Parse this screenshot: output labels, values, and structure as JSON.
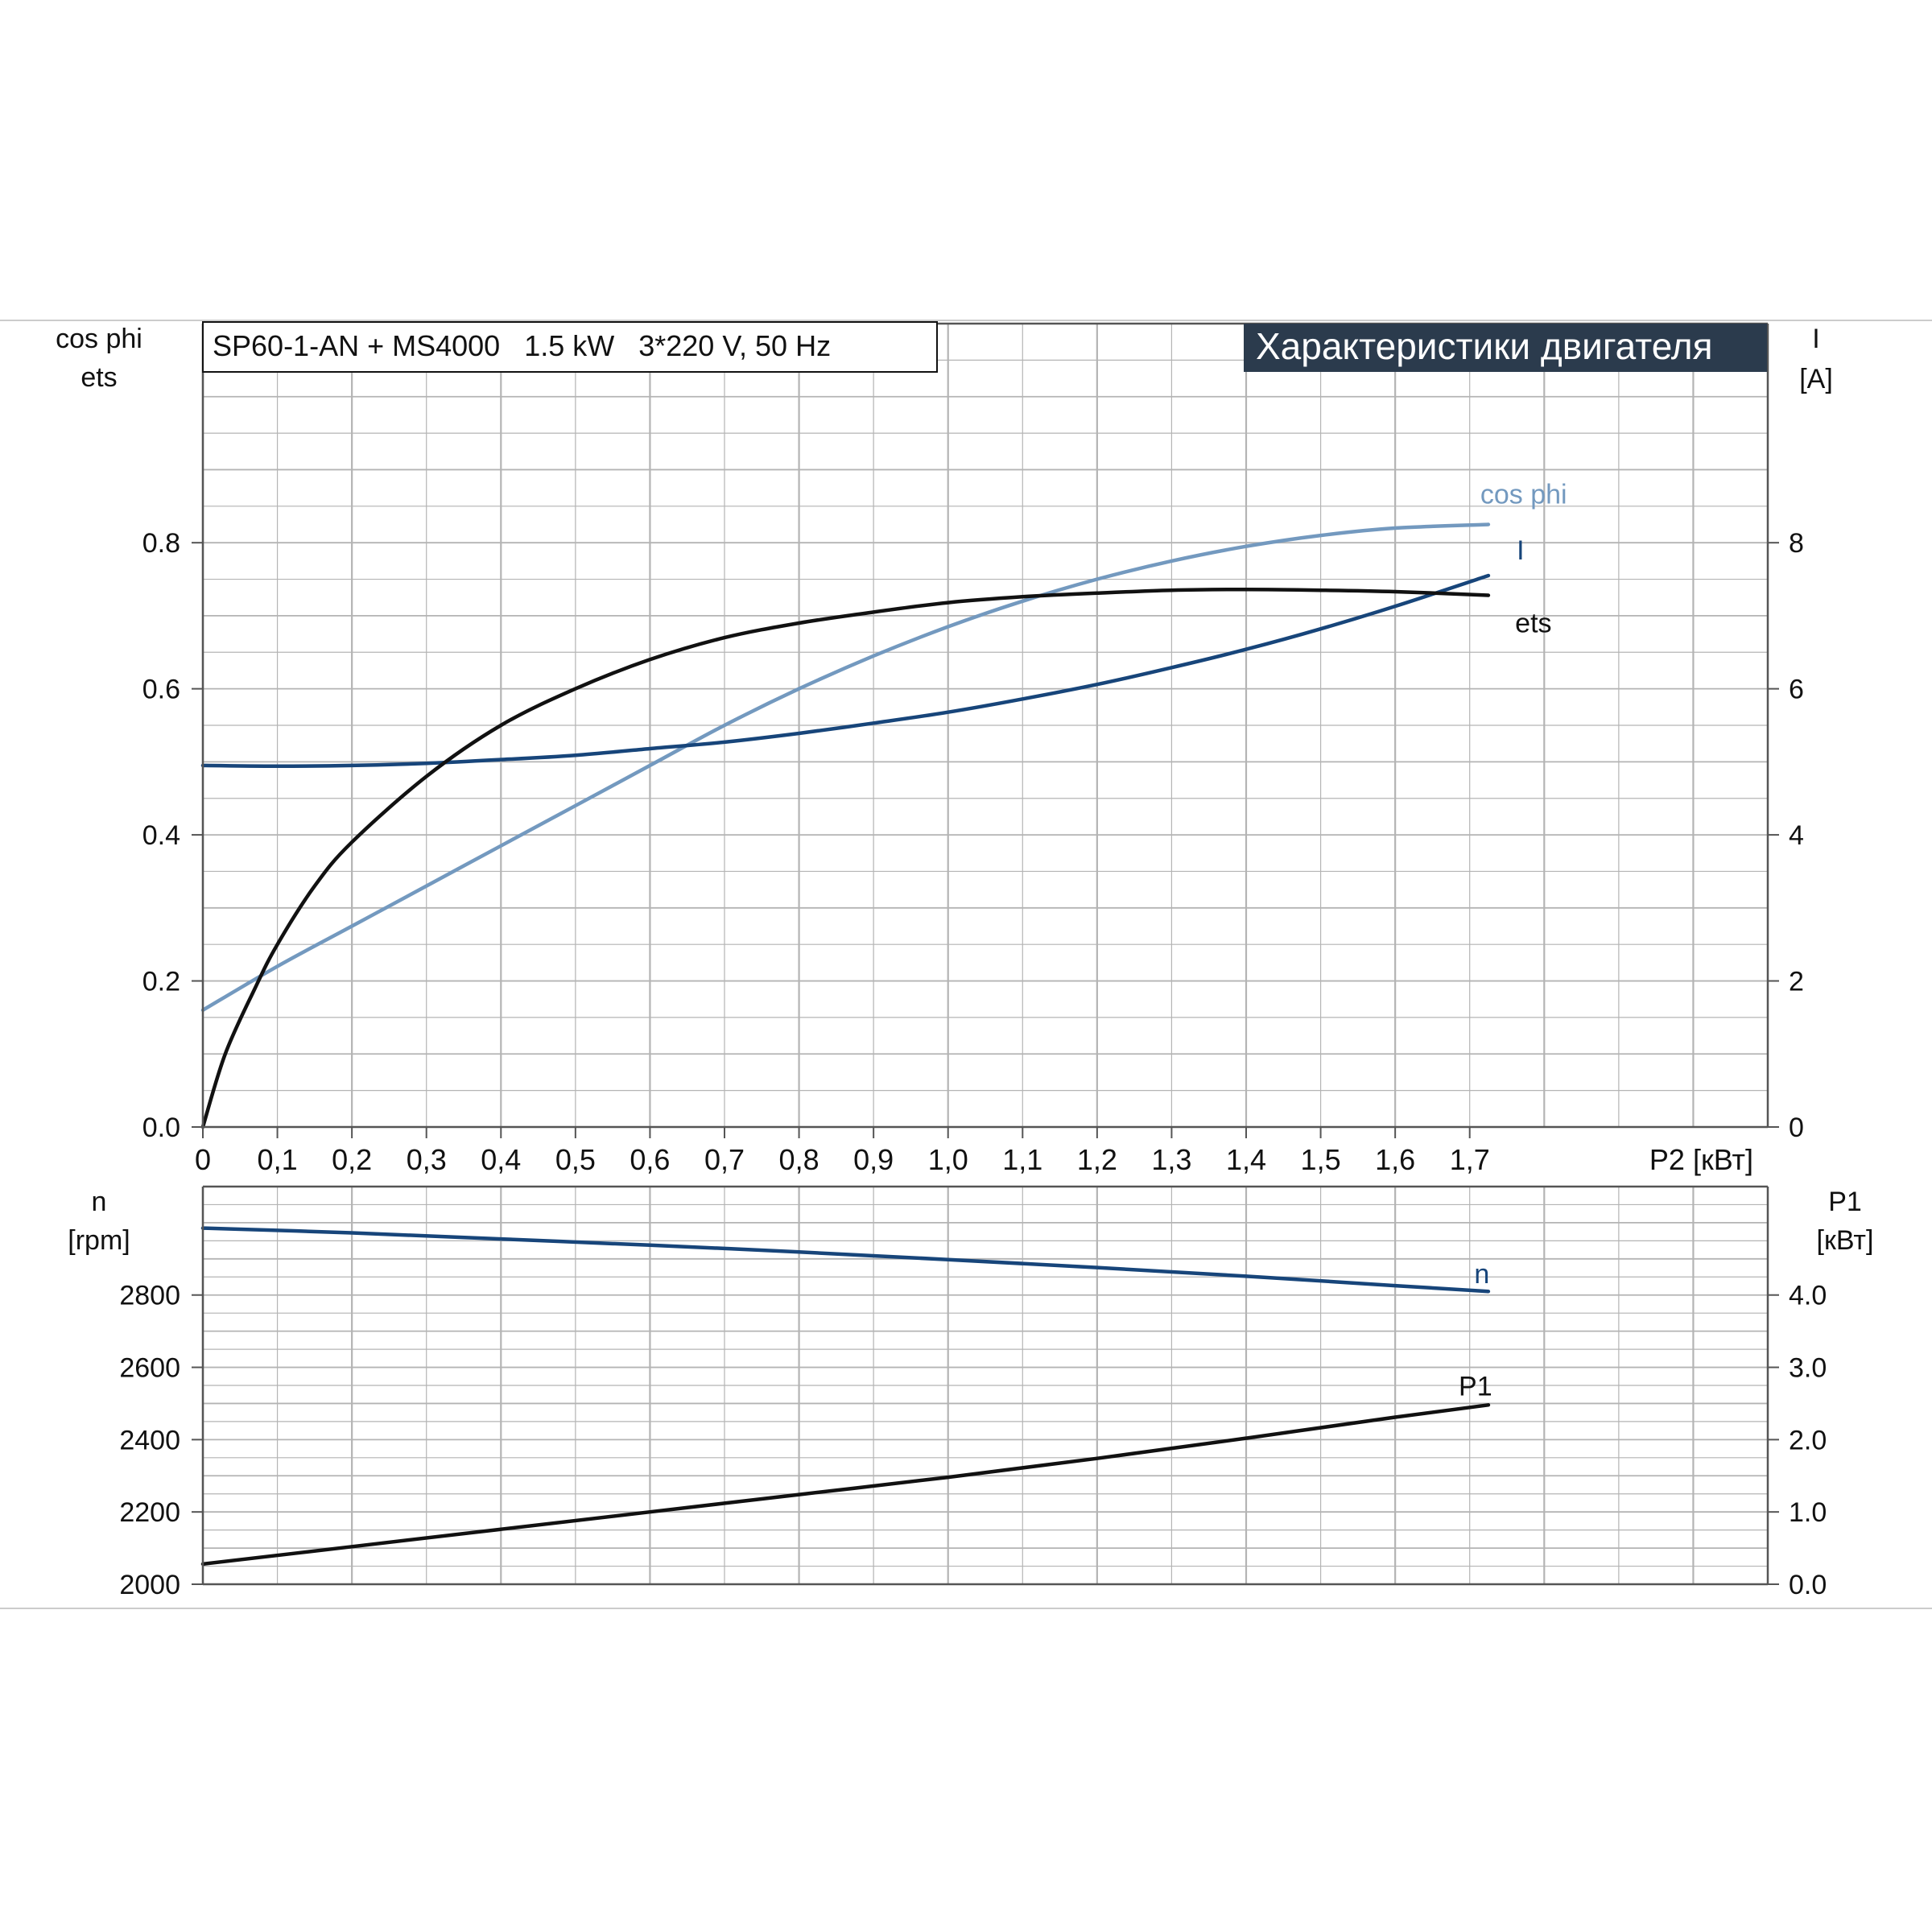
{
  "colors": {
    "grid": "#b4b4b4",
    "axis": "#555555",
    "frame": "#cccccc",
    "text": "#111111",
    "banner_bg": "#2b3b4d",
    "banner_text": "#ffffff",
    "eta": "#111111",
    "cos_phi": "#7399bf",
    "current": "#17457a",
    "speed": "#17457a",
    "p1": "#111111"
  },
  "header": {
    "model": "SP60-1-AN + MS4000   1.5 kW   3*220 V, 50 Hz",
    "banner": "Характеристики двигателя"
  },
  "chart_data": [
    {
      "type": "line",
      "x_ticks": [
        "0",
        "0,1",
        "0,2",
        "0,3",
        "0,4",
        "0,5",
        "0,6",
        "0,7",
        "0,8",
        "0,9",
        "1,0",
        "1,1",
        "1,2",
        "1,3",
        "1,4",
        "1,5",
        "1,6",
        "1,7"
      ],
      "x_label": "P2 [кВт]",
      "xlim": [
        0,
        2.1
      ],
      "left_axis": {
        "label_line1": "cos phi",
        "label_line2": "ets",
        "ticks": [
          "0.0",
          "0.2",
          "0.4",
          "0.6",
          "0.8"
        ],
        "ylim": [
          0,
          1.1
        ]
      },
      "right_axis": {
        "label_line1": "I",
        "label_line2": "[A]",
        "ticks": [
          "0",
          "2",
          "4",
          "6",
          "8"
        ],
        "ylim": [
          0,
          11
        ]
      },
      "grid": true,
      "series": [
        {
          "name": "cos phi",
          "axis": "left",
          "color_key": "cos_phi",
          "x": [
            0,
            0.1,
            0.2,
            0.3,
            0.4,
            0.5,
            0.6,
            0.7,
            0.8,
            0.9,
            1.0,
            1.1,
            1.2,
            1.3,
            1.4,
            1.5,
            1.6,
            1.725
          ],
          "y": [
            0.16,
            0.22,
            0.275,
            0.33,
            0.385,
            0.44,
            0.495,
            0.55,
            0.6,
            0.645,
            0.685,
            0.72,
            0.75,
            0.775,
            0.795,
            0.81,
            0.82,
            0.825
          ]
        },
        {
          "name": "I",
          "axis": "right",
          "color_key": "current",
          "x": [
            0,
            0.1,
            0.2,
            0.3,
            0.4,
            0.5,
            0.6,
            0.7,
            0.8,
            0.9,
            1.0,
            1.1,
            1.2,
            1.3,
            1.4,
            1.5,
            1.6,
            1.725
          ],
          "y": [
            4.95,
            4.94,
            4.95,
            4.98,
            5.03,
            5.09,
            5.18,
            5.27,
            5.39,
            5.53,
            5.68,
            5.86,
            6.06,
            6.29,
            6.54,
            6.82,
            7.13,
            7.55
          ]
        },
        {
          "name": "ets",
          "axis": "left",
          "color_key": "eta",
          "x": [
            0,
            0.03,
            0.07,
            0.1,
            0.15,
            0.2,
            0.3,
            0.4,
            0.5,
            0.6,
            0.7,
            0.8,
            0.9,
            1.0,
            1.1,
            1.2,
            1.3,
            1.4,
            1.5,
            1.6,
            1.725
          ],
          "y": [
            0,
            0.1,
            0.19,
            0.25,
            0.33,
            0.39,
            0.48,
            0.55,
            0.6,
            0.64,
            0.67,
            0.69,
            0.705,
            0.718,
            0.726,
            0.731,
            0.735,
            0.736,
            0.735,
            0.733,
            0.728
          ]
        }
      ]
    },
    {
      "type": "line",
      "xlim": [
        0,
        2.1
      ],
      "left_axis": {
        "label_line1": "n",
        "label_line2": "[rpm]",
        "ticks": [
          "2000",
          "2200",
          "2400",
          "2600",
          "2800"
        ],
        "ylim": [
          2000,
          3100
        ]
      },
      "right_axis": {
        "label_line1": "P1",
        "label_line2": "[кВт]",
        "ticks": [
          "0.0",
          "1.0",
          "2.0",
          "3.0",
          "4.0"
        ],
        "ylim": [
          0,
          5.5
        ]
      },
      "grid": true,
      "series": [
        {
          "name": "n",
          "axis": "left",
          "color_key": "speed",
          "x": [
            0,
            0.2,
            0.4,
            0.6,
            0.8,
            1.0,
            1.2,
            1.4,
            1.6,
            1.725
          ],
          "y": [
            2985,
            2972,
            2955,
            2938,
            2919,
            2898,
            2876,
            2852,
            2826,
            2810
          ]
        },
        {
          "name": "P1",
          "axis": "right",
          "color_key": "p1",
          "x": [
            0,
            0.2,
            0.4,
            0.6,
            0.8,
            1.0,
            1.2,
            1.4,
            1.6,
            1.725
          ],
          "y": [
            0.28,
            0.52,
            0.76,
            1.0,
            1.24,
            1.48,
            1.74,
            2.02,
            2.31,
            2.48
          ]
        }
      ]
    }
  ]
}
